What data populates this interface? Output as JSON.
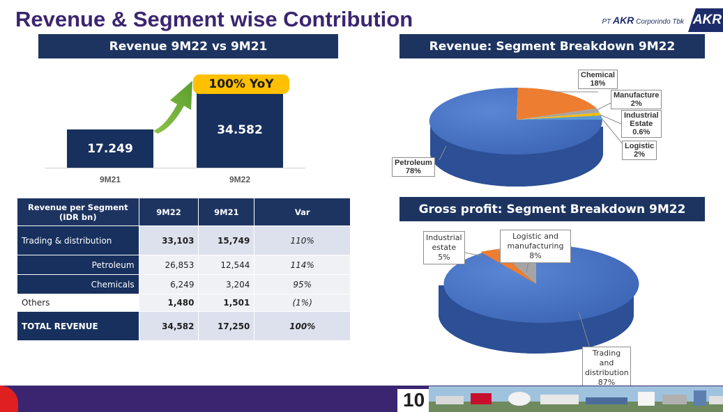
{
  "page": {
    "title": "Revenue & Segment wise Contribution",
    "page_number": "10"
  },
  "logo": {
    "company_text_prefix": "PT",
    "company_brand": "AKR",
    "company_text_suffix": "Corporindo Tbk",
    "mark_text": "AKR"
  },
  "revenue_panel": {
    "banner": "Revenue 9M22 vs 9M21",
    "yoy_badge": "100% YoY",
    "bars": [
      {
        "label": "9M21",
        "value_label": "17.249",
        "value": 17.249
      },
      {
        "label": "9M22",
        "value_label": "34.582",
        "value": 34.582
      }
    ]
  },
  "segment_table": {
    "headers": [
      "Revenue per Segment\n(IDR bn)",
      "9M22",
      "9M21",
      "Var"
    ],
    "rows": [
      {
        "name": "Trading & distribution",
        "v22": "33,103",
        "v21": "15,749",
        "var": "110%"
      },
      {
        "name": "Petroleum",
        "v22": "26,853",
        "v21": "12,544",
        "var": "114%"
      },
      {
        "name": "Chemicals",
        "v22": "6,249",
        "v21": "3,204",
        "var": "95%"
      },
      {
        "name": "Others",
        "v22": "1,480",
        "v21": "1,501",
        "var": "(1%)"
      },
      {
        "name": "TOTAL REVENUE",
        "v22": "34,582",
        "v21": "17,250",
        "var": "100%"
      }
    ]
  },
  "segment_pie": {
    "banner": "Revenue: Segment Breakdown 9M22",
    "labels": {
      "chemical": [
        "Chemical",
        "18%"
      ],
      "manufacture": [
        "Manufacture",
        "2%"
      ],
      "industrial": [
        "Industrial",
        "Estate",
        "0.6%"
      ],
      "logistic": [
        "Logistic",
        "2%"
      ],
      "petroleum": [
        "Petroleum",
        "78%"
      ]
    }
  },
  "gp_pie": {
    "banner": "Gross profit: Segment Breakdown 9M22",
    "labels": {
      "industrial": [
        "Industrial",
        "estate",
        "5%"
      ],
      "logistic": [
        "Logistic and",
        "manufacturing",
        "8%"
      ],
      "trading": [
        "Trading and",
        "distribution",
        "87%"
      ]
    }
  },
  "chart_data": [
    {
      "type": "bar",
      "title": "Revenue 9M22 vs 9M21",
      "categories": [
        "9M21",
        "9M22"
      ],
      "values": [
        17.249,
        34.582
      ],
      "annotations": [
        "100% YoY"
      ],
      "colors": [
        "#17305e"
      ]
    },
    {
      "type": "pie",
      "title": "Revenue: Segment Breakdown 9M22",
      "categories": [
        "Petroleum",
        "Chemical",
        "Manufacture",
        "Industrial Estate",
        "Logistic"
      ],
      "values": [
        78,
        18,
        2,
        0.6,
        2
      ],
      "colors": [
        "#4472c4",
        "#ed7d31",
        "#a5a5a5",
        "#ffc000",
        "#5b9bd5"
      ]
    },
    {
      "type": "pie",
      "title": "Gross profit: Segment Breakdown 9M22",
      "categories": [
        "Trading and distribution",
        "Industrial estate",
        "Logistic and manufacturing"
      ],
      "values": [
        87,
        5,
        8
      ],
      "colors": [
        "#4472c4",
        "#ed7d31",
        "#a5a5a5"
      ]
    }
  ]
}
